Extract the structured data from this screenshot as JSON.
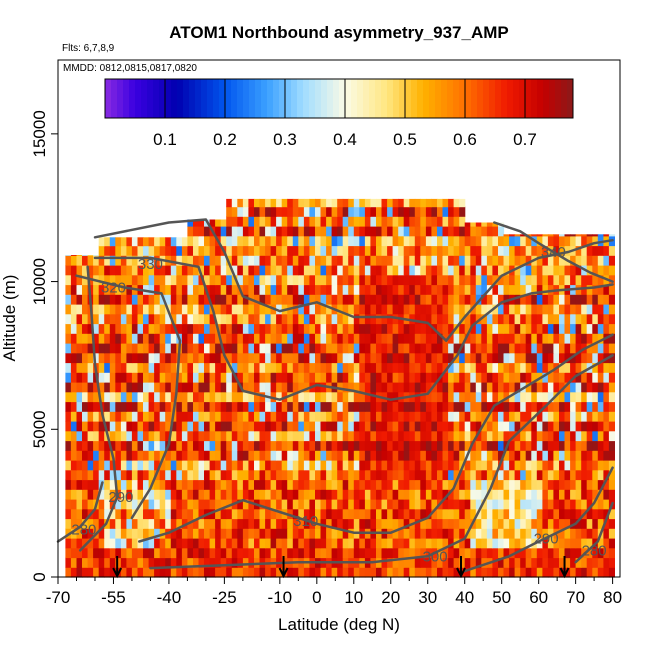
{
  "chart_data": {
    "type": "heatmap",
    "title": "ATOM1 Northbound asymmetry_937_AMP",
    "notes": {
      "flights": "Flts: 6,7,8,9",
      "dates": "MMDD: 0812,0815,0817,0820"
    },
    "xlabel": "Latitude (deg N)",
    "ylabel": "Altitude (m)",
    "xlim": [
      -70,
      82
    ],
    "ylim": [
      0,
      17500
    ],
    "x_ticks": [
      -70,
      -55,
      -40,
      -25,
      -10,
      0,
      10,
      20,
      30,
      40,
      50,
      60,
      70,
      80
    ],
    "x_tick_labels": [
      "-70",
      "-55",
      "-40",
      "-25",
      "-10",
      "0",
      "10",
      "20",
      "30",
      "40",
      "50",
      "60",
      "70",
      "80"
    ],
    "x_minor_ticks": [
      -65,
      -60,
      -50,
      -45,
      -35,
      -30,
      -20,
      -15,
      -5,
      5,
      15,
      25,
      35,
      45,
      55,
      65,
      75
    ],
    "y_ticks": [
      0,
      5000,
      10000,
      15000
    ],
    "y_tick_labels": [
      "0",
      "5000",
      "10000",
      "15000"
    ],
    "colorbar": {
      "range": [
        0,
        0.78
      ],
      "ticks": [
        0.1,
        0.2,
        0.3,
        0.4,
        0.5,
        0.6,
        0.7
      ],
      "tick_labels": [
        "0.1",
        "0.2",
        "0.3",
        "0.4",
        "0.5",
        "0.6",
        "0.7"
      ],
      "stops": [
        {
          "v": 0.0,
          "color": "#8a2be2"
        },
        {
          "v": 0.05,
          "color": "#3a00e0"
        },
        {
          "v": 0.12,
          "color": "#0000b0"
        },
        {
          "v": 0.2,
          "color": "#0055ee"
        },
        {
          "v": 0.27,
          "color": "#3ba0ff"
        },
        {
          "v": 0.33,
          "color": "#9fdcff"
        },
        {
          "v": 0.4,
          "color": "#fbfbe6"
        },
        {
          "v": 0.47,
          "color": "#ffe680"
        },
        {
          "v": 0.53,
          "color": "#ffb200"
        },
        {
          "v": 0.6,
          "color": "#ff7000"
        },
        {
          "v": 0.67,
          "color": "#f01a00"
        },
        {
          "v": 0.73,
          "color": "#c40000"
        },
        {
          "v": 0.78,
          "color": "#8b1a1a"
        }
      ]
    },
    "grid": false,
    "colors": {
      "contour": "#555555",
      "arrow": "#000000"
    },
    "profile_markers_latitude": [
      -54,
      -9,
      39,
      67
    ],
    "contours": [
      {
        "label": "280",
        "label_at": [
          -63,
          1600
        ],
        "points": [
          [
            -70,
            1200
          ],
          [
            -64,
            1700
          ],
          [
            -60,
            2300
          ],
          [
            -58,
            3200
          ]
        ]
      },
      {
        "label": "280",
        "label_at": [
          75,
          900
        ],
        "points": [
          [
            70,
            500
          ],
          [
            76,
            1200
          ],
          [
            80,
            2500
          ]
        ]
      },
      {
        "label": "290",
        "label_at": [
          -53,
          2700
        ],
        "points": [
          [
            -64,
            900
          ],
          [
            -57,
            1800
          ],
          [
            -54,
            2700
          ],
          [
            -55,
            4000
          ],
          [
            -58,
            5500
          ],
          [
            -60,
            7200
          ],
          [
            -61,
            9000
          ],
          [
            -62,
            10500
          ]
        ]
      },
      {
        "label": "290",
        "label_at": [
          62,
          1300
        ],
        "points": [
          [
            40,
            200
          ],
          [
            52,
            700
          ],
          [
            60,
            1200
          ],
          [
            70,
            1800
          ],
          [
            75,
            2500
          ],
          [
            80,
            3700
          ]
        ]
      },
      {
        "label": "300",
        "label_at": [
          32,
          700
        ],
        "points": [
          [
            -45,
            300
          ],
          [
            -25,
            400
          ],
          [
            -5,
            500
          ],
          [
            15,
            500
          ],
          [
            30,
            700
          ],
          [
            40,
            1300
          ],
          [
            47,
            3000
          ],
          [
            52,
            4600
          ],
          [
            62,
            5800
          ],
          [
            70,
            6800
          ],
          [
            80,
            7500
          ]
        ]
      },
      {
        "label": "310",
        "label_at": [
          -3,
          1900
        ],
        "points": [
          [
            -48,
            1200
          ],
          [
            -40,
            1500
          ],
          [
            -30,
            2100
          ],
          [
            -20,
            2600
          ],
          [
            -10,
            2200
          ],
          [
            0,
            1800
          ],
          [
            10,
            1500
          ],
          [
            20,
            1500
          ],
          [
            30,
            2000
          ],
          [
            37,
            3000
          ],
          [
            42,
            4500
          ],
          [
            48,
            5800
          ],
          [
            56,
            6400
          ],
          [
            64,
            7000
          ],
          [
            72,
            7700
          ],
          [
            80,
            8200
          ]
        ]
      },
      {
        "label": "320",
        "label_at": [
          -55,
          9800
        ],
        "points": [
          [
            -50,
            2000
          ],
          [
            -45,
            3000
          ],
          [
            -40,
            4500
          ],
          [
            -38,
            6200
          ],
          [
            -37,
            8000
          ],
          [
            -42,
            9600
          ],
          [
            -52,
            9800
          ],
          [
            -65,
            10200
          ]
        ]
      },
      {
        "label": "330",
        "label_at": [
          -45,
          10600
        ],
        "points": [
          [
            -60,
            10800
          ],
          [
            -45,
            10800
          ],
          [
            -32,
            10500
          ],
          [
            -28,
            9000
          ],
          [
            -25,
            7500
          ],
          [
            -20,
            6300
          ],
          [
            -10,
            6000
          ],
          [
            0,
            6500
          ],
          [
            10,
            6300
          ],
          [
            20,
            6000
          ],
          [
            30,
            6200
          ],
          [
            38,
            7500
          ],
          [
            42,
            8500
          ],
          [
            50,
            9300
          ],
          [
            58,
            9600
          ],
          [
            65,
            9700
          ],
          [
            75,
            9800
          ],
          [
            80,
            9900
          ]
        ]
      },
      {
        "label": "340",
        "label_at": [
          64,
          11000
        ],
        "points": [
          [
            -60,
            11500
          ],
          [
            -40,
            12000
          ],
          [
            -30,
            12100
          ],
          [
            -25,
            11000
          ],
          [
            -20,
            9500
          ],
          [
            -10,
            9000
          ],
          [
            0,
            9300
          ],
          [
            10,
            8800
          ],
          [
            20,
            8800
          ],
          [
            30,
            8600
          ],
          [
            35,
            8000
          ],
          [
            40,
            8800
          ],
          [
            50,
            10200
          ],
          [
            60,
            10800
          ],
          [
            68,
            11000
          ],
          [
            75,
            11300
          ],
          [
            80,
            11400
          ]
        ]
      },
      {
        "label": "",
        "label_at": null,
        "points": [
          [
            48,
            12000
          ],
          [
            55,
            11700
          ],
          [
            60,
            11300
          ],
          [
            68,
            10700
          ],
          [
            74,
            10300
          ],
          [
            80,
            10000
          ]
        ]
      }
    ]
  }
}
